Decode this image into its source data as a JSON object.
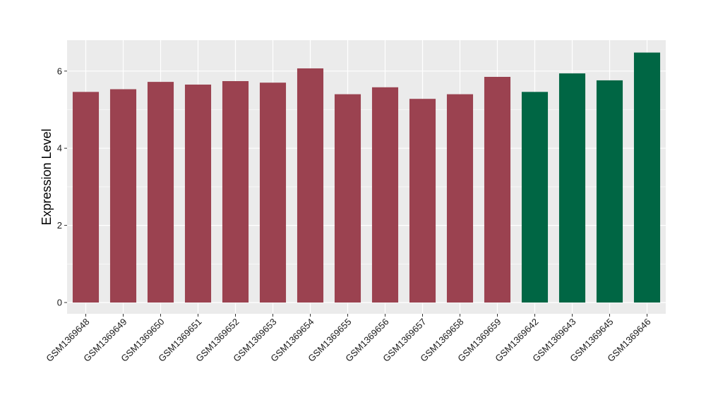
{
  "chart_data": {
    "type": "bar",
    "title": "",
    "xlabel": "",
    "ylabel": "Expression Level",
    "ylim": [
      0,
      6.6
    ],
    "yticks": [
      0,
      2,
      4,
      6
    ],
    "grid": true,
    "categories": [
      "GSM1369648",
      "GSM1369649",
      "GSM1369650",
      "GSM1369651",
      "GSM1369652",
      "GSM1369653",
      "GSM1369654",
      "GSM1369655",
      "GSM1369656",
      "GSM1369657",
      "GSM1369658",
      "GSM1369659",
      "GSM1369642",
      "GSM1369643",
      "GSM1369645",
      "GSM1369646"
    ],
    "values": [
      5.46,
      5.53,
      5.72,
      5.65,
      5.74,
      5.7,
      6.07,
      5.4,
      5.58,
      5.28,
      5.4,
      5.85,
      5.46,
      5.94,
      5.76,
      6.48
    ],
    "bar_colors": [
      "#9b4250",
      "#9b4250",
      "#9b4250",
      "#9b4250",
      "#9b4250",
      "#9b4250",
      "#9b4250",
      "#9b4250",
      "#9b4250",
      "#9b4250",
      "#9b4250",
      "#9b4250",
      "#006644",
      "#006644",
      "#006644",
      "#006644"
    ],
    "colors": {
      "panel_bg": "#ebebeb",
      "grid": "#ffffff",
      "group_1": "#9b4250",
      "group_2": "#006644"
    }
  }
}
